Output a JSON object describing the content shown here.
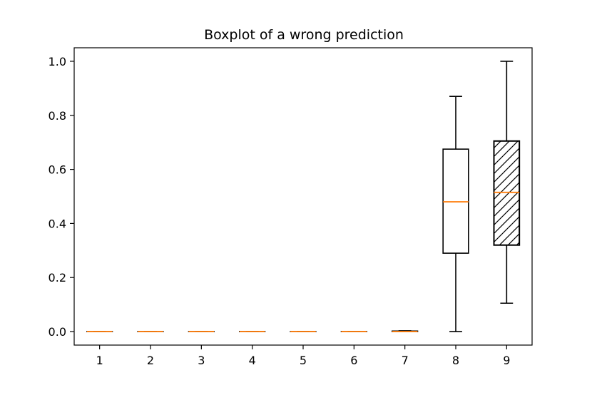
{
  "chart_data": {
    "type": "box",
    "title": "Boxplot of a wrong prediction",
    "xlabel": "",
    "ylabel": "",
    "categories": [
      "1",
      "2",
      "3",
      "4",
      "5",
      "6",
      "7",
      "8",
      "9"
    ],
    "ylim": [
      -0.05,
      1.05
    ],
    "yticks": [
      "0.0",
      "0.2",
      "0.4",
      "0.6",
      "0.8",
      "1.0"
    ],
    "grid": false,
    "boxes": [
      {
        "whisker_low": 0.0,
        "q1": 0.0,
        "median": 0.0,
        "q3": 0.0,
        "whisker_high": 0.0,
        "hatched": false
      },
      {
        "whisker_low": 0.0,
        "q1": 0.0,
        "median": 0.0,
        "q3": 0.0,
        "whisker_high": 0.0,
        "hatched": false
      },
      {
        "whisker_low": 0.0,
        "q1": 0.0,
        "median": 0.0,
        "q3": 0.0,
        "whisker_high": 0.0,
        "hatched": false
      },
      {
        "whisker_low": 0.0,
        "q1": 0.0,
        "median": 0.0,
        "q3": 0.0,
        "whisker_high": 0.0,
        "hatched": false
      },
      {
        "whisker_low": 0.0,
        "q1": 0.0,
        "median": 0.0,
        "q3": 0.0,
        "whisker_high": 0.0,
        "hatched": false
      },
      {
        "whisker_low": 0.0,
        "q1": 0.0,
        "median": 0.0,
        "q3": 0.0,
        "whisker_high": 0.0,
        "hatched": false
      },
      {
        "whisker_low": 0.0,
        "q1": 0.0,
        "median": 0.0,
        "q3": 0.002,
        "whisker_high": 0.003,
        "hatched": false
      },
      {
        "whisker_low": 0.0,
        "q1": 0.29,
        "median": 0.48,
        "q3": 0.675,
        "whisker_high": 0.87,
        "hatched": false
      },
      {
        "whisker_low": 0.105,
        "q1": 0.32,
        "median": 0.515,
        "q3": 0.705,
        "whisker_high": 1.0,
        "hatched": true
      }
    ],
    "colors": {
      "box": "#000000",
      "median": "#ff7f0e",
      "axes": "#000000",
      "background": "#ffffff"
    }
  }
}
